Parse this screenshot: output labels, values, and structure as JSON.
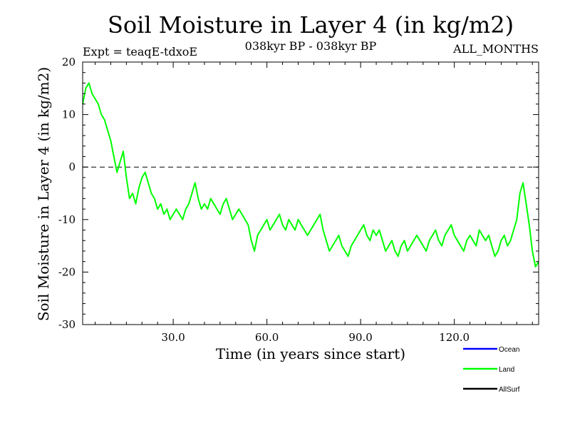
{
  "chart_data": {
    "type": "line",
    "title": "Soil Moisture in Layer 4 (in kg/m2)",
    "subtitle_left": "Expt = teaqE-tdxoE",
    "subtitle_center": "038kyr BP - 038kyr BP",
    "subtitle_right": "ALL_MONTHS",
    "xlabel": "Time (in years since start)",
    "ylabel": "Soil Moisture in Layer 4 (in kg/m2)",
    "xlim": [
      1,
      147
    ],
    "ylim": [
      -30,
      20
    ],
    "x_ticks": [
      30,
      60,
      90,
      120
    ],
    "x_tick_labels": [
      "30.0",
      "60.0",
      "90.0",
      "120.0"
    ],
    "y_ticks": [
      -30,
      -20,
      -10,
      0,
      10,
      20
    ],
    "y_tick_labels": [
      "-30",
      "-20",
      "-10",
      "0",
      "10",
      "20"
    ],
    "zero_line": true,
    "legend_position": "bottom-right",
    "series": [
      {
        "name": "Ocean",
        "color": "#0000ff",
        "x": [],
        "values": []
      },
      {
        "name": "Land",
        "color": "#00ff00",
        "x": [
          1,
          2,
          3,
          4,
          5,
          6,
          7,
          8,
          9,
          10,
          11,
          12,
          13,
          14,
          15,
          16,
          17,
          18,
          19,
          20,
          21,
          22,
          23,
          24,
          25,
          26,
          27,
          28,
          29,
          30,
          31,
          32,
          33,
          34,
          35,
          36,
          37,
          38,
          39,
          40,
          41,
          42,
          43,
          44,
          45,
          46,
          47,
          48,
          49,
          50,
          51,
          52,
          53,
          54,
          55,
          56,
          57,
          58,
          59,
          60,
          61,
          62,
          63,
          64,
          65,
          66,
          67,
          68,
          69,
          70,
          71,
          72,
          73,
          74,
          75,
          76,
          77,
          78,
          79,
          80,
          81,
          82,
          83,
          84,
          85,
          86,
          87,
          88,
          89,
          90,
          91,
          92,
          93,
          94,
          95,
          96,
          97,
          98,
          99,
          100,
          101,
          102,
          103,
          104,
          105,
          106,
          107,
          108,
          109,
          110,
          111,
          112,
          113,
          114,
          115,
          116,
          117,
          118,
          119,
          120,
          121,
          122,
          123,
          124,
          125,
          126,
          127,
          128,
          129,
          130,
          131,
          132,
          133,
          134,
          135,
          136,
          137,
          138,
          139,
          140,
          141,
          142,
          143,
          144,
          145,
          146,
          147
        ],
        "values": [
          12,
          15,
          16,
          14,
          13,
          12,
          10,
          9,
          7,
          5,
          2,
          -1,
          1,
          3,
          -2,
          -6,
          -5,
          -7,
          -4,
          -2,
          -1,
          -3,
          -5,
          -6,
          -8,
          -7,
          -9,
          -8,
          -10,
          -9,
          -8,
          -9,
          -10,
          -8,
          -7,
          -5,
          -3,
          -6,
          -8,
          -7,
          -8,
          -6,
          -7,
          -8,
          -9,
          -7,
          -6,
          -8,
          -10,
          -9,
          -8,
          -9,
          -10,
          -11,
          -14,
          -16,
          -13,
          -12,
          -11,
          -10,
          -12,
          -11,
          -10,
          -9,
          -11,
          -12,
          -10,
          -11,
          -12,
          -10,
          -11,
          -12,
          -13,
          -12,
          -11,
          -10,
          -9,
          -12,
          -14,
          -16,
          -15,
          -14,
          -13,
          -15,
          -16,
          -17,
          -15,
          -14,
          -13,
          -12,
          -11,
          -13,
          -14,
          -12,
          -13,
          -12,
          -14,
          -16,
          -15,
          -14,
          -16,
          -17,
          -15,
          -14,
          -16,
          -15,
          -14,
          -13,
          -14,
          -15,
          -16,
          -14,
          -13,
          -12,
          -14,
          -15,
          -13,
          -12,
          -11,
          -13,
          -14,
          -15,
          -16,
          -14,
          -13,
          -14,
          -15,
          -12,
          -13,
          -14,
          -13,
          -15,
          -17,
          -16,
          -14,
          -13,
          -15,
          -14,
          -12,
          -10,
          -5,
          -3,
          -7,
          -11,
          -16,
          -19,
          -18
        ]
      },
      {
        "name": "AllSurf",
        "color": "#000000",
        "x": [],
        "values": []
      }
    ]
  }
}
